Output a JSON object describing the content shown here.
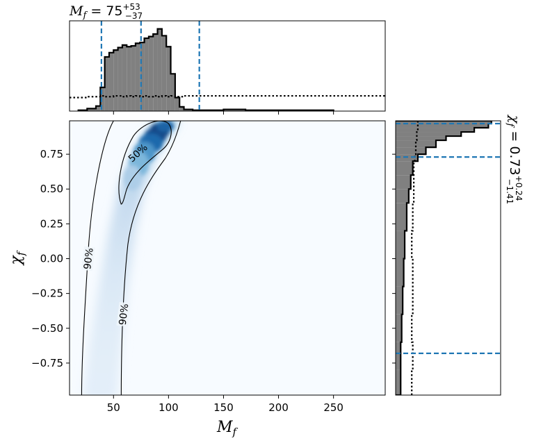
{
  "chart_data": [
    {
      "panel": "top-marginal",
      "type": "histogram",
      "title": {
        "symbol": "M",
        "subscript": "f",
        "equals": " = ",
        "value": "75",
        "plus": "+53",
        "minus": "−37"
      },
      "xlim": [
        10,
        297
      ],
      "bins_x": [
        18,
        26,
        34,
        38,
        42,
        46,
        50,
        54,
        58,
        62,
        66,
        70,
        74,
        78,
        82,
        86,
        90,
        94,
        98,
        102,
        106,
        110,
        114,
        122,
        150,
        170,
        200,
        250
      ],
      "posterior_density": [
        0.01,
        0.03,
        0.06,
        0.28,
        0.64,
        0.69,
        0.72,
        0.75,
        0.78,
        0.76,
        0.77,
        0.8,
        0.81,
        0.86,
        0.88,
        0.91,
        0.97,
        0.89,
        0.76,
        0.44,
        0.16,
        0.05,
        0.02,
        0.01,
        0.02,
        0.01,
        0.01
      ],
      "prior_density": [
        0.16,
        0.17,
        0.17,
        0.18,
        0.17,
        0.17,
        0.18,
        0.18,
        0.17,
        0.18,
        0.17,
        0.18,
        0.17,
        0.18,
        0.17,
        0.18,
        0.17,
        0.18,
        0.17,
        0.18,
        0.17,
        0.17,
        0.18,
        0.18,
        0.18,
        0.18,
        0.18
      ],
      "quantile_lines": [
        39,
        75,
        128
      ],
      "colors": {
        "posterior_fill": "#808080",
        "quantile_line": "#1f77b4"
      }
    },
    {
      "panel": "joint",
      "type": "heatmap",
      "xlabel": {
        "symbol": "M",
        "subscript": "f"
      },
      "ylabel": {
        "symbol": "χ",
        "subscript": "f"
      },
      "xlim": [
        10,
        297
      ],
      "ylim": [
        -0.98,
        0.99
      ],
      "x_ticks": [
        50,
        100,
        150,
        200,
        250
      ],
      "y_ticks": [
        0.75,
        0.5,
        0.25,
        0.0,
        -0.25,
        -0.5,
        -0.75
      ],
      "ridge": {
        "chi": [
          -0.98,
          -0.6,
          -0.2,
          0.2,
          0.5,
          0.75,
          0.9,
          0.97
        ],
        "mass": [
          38,
          43,
          50,
          58,
          66,
          78,
          90,
          98
        ]
      },
      "contours": [
        {
          "label": "50%",
          "label_at": [
            72,
            0.76
          ]
        },
        {
          "label": "90%",
          "label_at": [
            27,
            0.0
          ]
        },
        {
          "label": "90%",
          "label_at": [
            59,
            -0.4
          ]
        }
      ],
      "colors": {
        "map": "Blues",
        "peak": "#08306b",
        "contour": "#000000"
      }
    },
    {
      "panel": "right-marginal",
      "type": "histogram",
      "title": {
        "symbol": "χ",
        "subscript": "f",
        "equals": " = ",
        "value": "0.73",
        "plus": "+0.24",
        "minus": "−1.41"
      },
      "ylim": [
        -0.98,
        0.99
      ],
      "bins_y": [
        -0.98,
        -0.8,
        -0.6,
        -0.4,
        -0.2,
        0.0,
        0.2,
        0.4,
        0.5,
        0.6,
        0.7,
        0.75,
        0.8,
        0.85,
        0.88,
        0.91,
        0.94,
        0.97,
        0.99
      ],
      "posterior_density": [
        0.05,
        0.05,
        0.06,
        0.07,
        0.08,
        0.09,
        0.11,
        0.13,
        0.15,
        0.17,
        0.22,
        0.3,
        0.4,
        0.5,
        0.65,
        0.78,
        0.92,
        0.95
      ],
      "prior_density": [
        0.16,
        0.17,
        0.16,
        0.17,
        0.17,
        0.16,
        0.17,
        0.18,
        0.18,
        0.18,
        0.19,
        0.2,
        0.2,
        0.21,
        0.21,
        0.22,
        0.22,
        0.22
      ],
      "quantile_lines": [
        -0.68,
        0.73,
        0.97
      ],
      "colors": {
        "posterior_fill": "#808080",
        "quantile_line": "#1f77b4"
      }
    }
  ]
}
